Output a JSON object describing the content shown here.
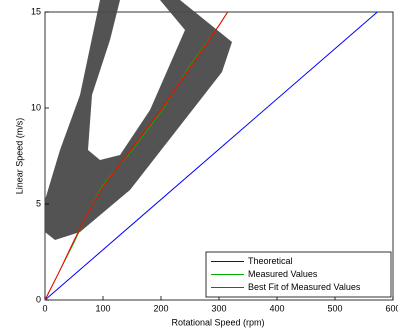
{
  "chart_data": {
    "type": "line",
    "xlabel": "Rotational Speed (rpm)",
    "ylabel": "Linear Speed (m/s)",
    "series": [
      {
        "name": "Theoretical",
        "color": "#0000ff",
        "x": [
          0,
          573
        ],
        "values": [
          0,
          15
        ]
      },
      {
        "name": "Measured Values",
        "color": "#00b000",
        "x": [
          0,
          25,
          50,
          75,
          100,
          150,
          200,
          250,
          300,
          315
        ],
        "values": [
          0,
          1.5,
          3,
          4.6,
          6.0,
          7.8,
          9.8,
          12.2,
          14.3,
          15
        ]
      },
      {
        "name": "Best Fit of Measured Values",
        "color": "#ff0000",
        "x": [
          0,
          25,
          50,
          75,
          100,
          150,
          200,
          250,
          300,
          315
        ],
        "values": [
          0,
          1.5,
          3.1,
          4.6,
          5.9,
          7.9,
          9.9,
          12.1,
          14.3,
          15
        ]
      }
    ],
    "xlim": [
      0,
      600
    ],
    "xticks": [
      0,
      100,
      200,
      300,
      400,
      500,
      600
    ],
    "ylim": [
      0,
      15
    ],
    "yticks": [
      0,
      5,
      10,
      15
    ],
    "legend": "lower right"
  }
}
